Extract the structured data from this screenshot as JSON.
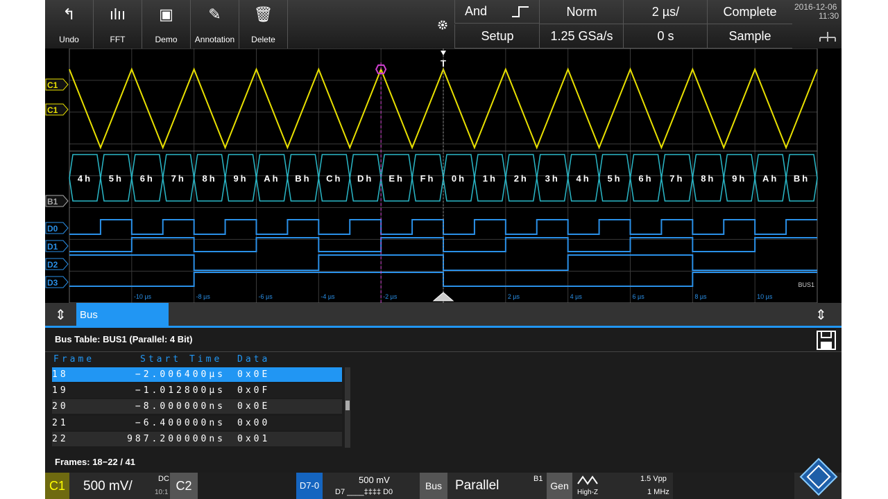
{
  "toolbar": {
    "buttons": [
      "Undo",
      "FFT",
      "Demo",
      "Annotation",
      "Delete"
    ]
  },
  "status": {
    "trigger_logic": "And",
    "trigger_mode": "Norm",
    "time_scale": "2 µs/",
    "acquisition": "Complete",
    "date": "2016-12-06",
    "time": "11:30",
    "setup": "Setup",
    "sample_rate": "1.25 GSa/s",
    "position": "0 s",
    "mode": "Sample"
  },
  "waveform": {
    "channel_labels": [
      "C1",
      "C1",
      "B1",
      "D0",
      "D1",
      "D2",
      "D3"
    ],
    "bus_label": "BUS1",
    "trigger_label": "T",
    "bus_values": [
      "4h",
      "5h",
      "6h",
      "7h",
      "8h",
      "9h",
      "Ah",
      "Bh",
      "Ch",
      "Dh",
      "Eh",
      "Fh",
      "0h",
      "1h",
      "2h",
      "3h",
      "4h",
      "5h",
      "6h",
      "7h",
      "8h",
      "9h",
      "Ah",
      "Bh"
    ],
    "time_labels": [
      "-10 µs",
      "-8 µs",
      "-6 µs",
      "-4 µs",
      "-2 µs",
      "2 µs",
      "4 µs",
      "6 µs",
      "8 µs",
      "10 µs"
    ]
  },
  "panel": {
    "tab": "Bus",
    "title": "Bus Table: BUS1 (Parallel: 4 Bit)",
    "columns": [
      "Frame",
      "Start Time",
      "Data"
    ],
    "rows": [
      [
        "18",
        "−2.006400µs",
        "0x0E"
      ],
      [
        "19",
        "−1.012800µs",
        "0x0F"
      ],
      [
        "20",
        "−8.000000ns",
        "0x0E"
      ],
      [
        "21",
        "−6.400000ns",
        "0x00"
      ],
      [
        "22",
        "987.200000ns",
        "0x01"
      ]
    ],
    "selected_row": 0,
    "footer": "Frames: 18−22 / 41"
  },
  "bottom_bar": {
    "c1": "C1",
    "c1_scale": "500 mV/",
    "c1_coupling": "DC",
    "c1_probe": "10:1",
    "c2": "C2",
    "logic": "D7-0",
    "logic_threshold": "500 mV",
    "logic_bits": "D7 ____‡‡‡‡ D0",
    "bus": "Bus",
    "bus_type": "Parallel",
    "bus_id": "B1",
    "gen": "Gen",
    "gen_load": "High-Z",
    "gen_amplitude": "1.5 Vpp",
    "gen_frequency": "1 MHz"
  }
}
